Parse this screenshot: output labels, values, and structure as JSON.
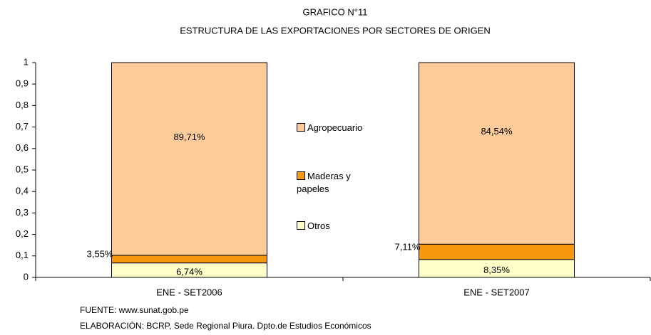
{
  "chart_data": {
    "type": "stacked_bar",
    "title": "GRAFICO N°11",
    "subtitle": "ESTRUCTURA DE LAS EXPORTACIONES POR SECTORES DE ORIGEN",
    "categories": [
      "ENE - SET2006",
      "ENE - SET2007"
    ],
    "series": [
      {
        "name": "Otros",
        "color": "#ffffc8",
        "values": [
          0.0674,
          0.0835
        ],
        "value_labels": [
          "6,74%",
          "8,35%"
        ]
      },
      {
        "name": "Maderas y papeles",
        "color": "#f7980f",
        "values": [
          0.0355,
          0.0711
        ],
        "value_labels": [
          "3,55%",
          "7,11%"
        ]
      },
      {
        "name": "Agropecuario",
        "color": "#ffcc99",
        "values": [
          0.8971,
          0.8454
        ],
        "value_labels": [
          "89,71%",
          "84,54%"
        ]
      }
    ],
    "ylim": [
      0,
      1
    ],
    "yticks": [
      0,
      {
        "value": 0.1,
        "label": "0,1"
      },
      {
        "value": 0.2,
        "label": "0,2"
      },
      {
        "value": 0.3,
        "label": "0,3"
      },
      {
        "value": 0.4,
        "label": "0,4"
      },
      {
        "value": 0.5,
        "label": "0,5"
      },
      {
        "value": 0.6,
        "label": "0,6"
      },
      {
        "value": 0.7,
        "label": "0,7"
      },
      {
        "value": 0.8,
        "label": "0,8"
      },
      {
        "value": 0.9,
        "label": "0,9"
      },
      1
    ],
    "grid": false,
    "legend": "center",
    "notes": [
      "FUENTE: www.sunat.gob.pe",
      "ELABORACIÓN: BCRP, Sede Regional Piura. Dpto.de Estudios Económicos"
    ]
  }
}
